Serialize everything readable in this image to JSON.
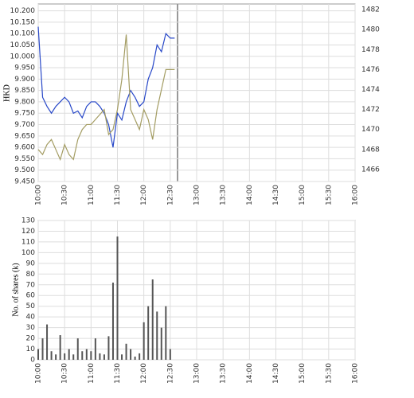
{
  "chart_data": [
    {
      "type": "line",
      "ylabel": "HKD",
      "x": [
        "10:00",
        "10:05",
        "10:10",
        "10:15",
        "10:20",
        "10:25",
        "10:30",
        "10:35",
        "10:40",
        "10:45",
        "10:50",
        "10:55",
        "11:00",
        "11:05",
        "11:10",
        "11:15",
        "11:20",
        "11:25",
        "11:30",
        "11:35",
        "11:40",
        "11:45",
        "11:50",
        "11:55",
        "12:00",
        "12:05",
        "12:10",
        "12:15",
        "12:20",
        "12:25",
        "12:30",
        "12:35"
      ],
      "series": [
        {
          "color": "#2848c8",
          "values": [
            10.13,
            9.82,
            9.78,
            9.75,
            9.78,
            9.8,
            9.82,
            9.8,
            9.75,
            9.76,
            9.73,
            9.78,
            9.8,
            9.8,
            9.78,
            9.75,
            9.7,
            9.6,
            9.75,
            9.72,
            9.8,
            9.85,
            9.82,
            9.78,
            9.8,
            9.9,
            9.95,
            10.05,
            10.02,
            10.1,
            10.08,
            10.08
          ]
        },
        {
          "color": "#a39c62",
          "axis": "y2",
          "values": [
            1468,
            1467.5,
            1468.5,
            1469,
            1468,
            1467,
            1468.5,
            1467.5,
            1467,
            1469,
            1470,
            1470.5,
            1470.5,
            1471,
            1471.5,
            1472,
            1469.5,
            1470,
            1472,
            1475,
            1479.5,
            1472,
            1471,
            1470,
            1472,
            1471,
            1469,
            1472,
            1474,
            1476,
            1476,
            1476
          ]
        }
      ],
      "xlim": [
        "10:00",
        "16:00"
      ],
      "xticks": [
        "10:00",
        "10:30",
        "11:00",
        "11:30",
        "12:00",
        "12:30",
        "13:00",
        "13:30",
        "14:00",
        "14:30",
        "15:00",
        "15:30",
        "16:00"
      ],
      "ylim": [
        9.45,
        10.23
      ],
      "yticks": [
        {
          "value": 9.45,
          "label": "9.450"
        },
        {
          "value": 9.5,
          "label": "9.500"
        },
        {
          "value": 9.55,
          "label": "9.550"
        },
        {
          "value": 9.6,
          "label": "9.600"
        },
        {
          "value": 9.65,
          "label": "9.650"
        },
        {
          "value": 9.7,
          "label": "9.700"
        },
        {
          "value": 9.75,
          "label": "9.750"
        },
        {
          "value": 9.8,
          "label": "9.800"
        },
        {
          "value": 9.85,
          "label": "9.850"
        },
        {
          "value": 9.9,
          "label": "9.900"
        },
        {
          "value": 9.95,
          "label": "9.950"
        },
        {
          "value": 10.0,
          "label": "10.000"
        },
        {
          "value": 10.05,
          "label": "10.050"
        },
        {
          "value": 10.1,
          "label": "10.100"
        },
        {
          "value": 10.15,
          "label": "10.150"
        },
        {
          "value": 10.2,
          "label": "10.200"
        }
      ],
      "y2lim": [
        1464.8,
        1482.56
      ],
      "y2ticks": [
        1466,
        1468,
        1470,
        1472,
        1474,
        1476,
        1478,
        1480,
        1482
      ],
      "grid": true
    },
    {
      "type": "bar",
      "ylabel": "No. of shares (k)",
      "x": [
        "10:00",
        "10:05",
        "10:10",
        "10:15",
        "10:20",
        "10:25",
        "10:30",
        "10:35",
        "10:40",
        "10:45",
        "10:50",
        "10:55",
        "11:00",
        "11:05",
        "11:10",
        "11:15",
        "11:20",
        "11:25",
        "11:30",
        "11:35",
        "11:40",
        "11:45",
        "11:50",
        "11:55",
        "12:00",
        "12:05",
        "12:10",
        "12:15",
        "12:20",
        "12:25",
        "12:30"
      ],
      "values": [
        10,
        20,
        33,
        8,
        5,
        23,
        6,
        10,
        5,
        20,
        8,
        10,
        8,
        20,
        6,
        5,
        22,
        72,
        115,
        5,
        15,
        10,
        3,
        6,
        35,
        50,
        75,
        45,
        30,
        50,
        10
      ],
      "color": "#555555",
      "xlim": [
        "10:00",
        "16:00"
      ],
      "xticks": [
        "10:00",
        "10:30",
        "11:00",
        "11:30",
        "12:00",
        "12:30",
        "13:00",
        "13:30",
        "14:00",
        "14:30",
        "15:00",
        "15:30",
        "16:00"
      ],
      "ylim": [
        0,
        130
      ],
      "yticks": [
        0,
        10,
        20,
        30,
        40,
        50,
        60,
        70,
        80,
        90,
        100,
        110,
        120,
        130
      ],
      "grid": true
    }
  ]
}
